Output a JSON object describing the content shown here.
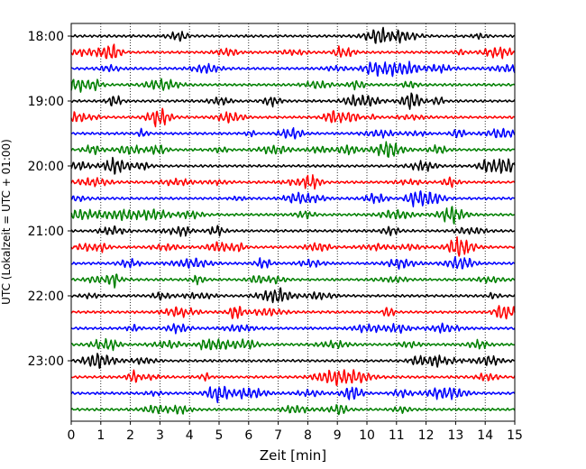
{
  "chart_data": {
    "type": "line",
    "title": "",
    "xlabel": "Zeit  [min]",
    "ylabel": "UTC (Lokalzeit = UTC + 01:00)",
    "xlim": [
      0,
      15
    ],
    "x_ticks": [
      "0",
      "1",
      "2",
      "3",
      "4",
      "5",
      "6",
      "7",
      "8",
      "9",
      "10",
      "11",
      "12",
      "13",
      "14",
      "15"
    ],
    "y_ticks": [
      "18:00",
      "19:00",
      "20:00",
      "21:00",
      "22:00",
      "23:00"
    ],
    "grid": "vertical-dotted",
    "legend": "none",
    "trace_interval_min": 15,
    "trace_count": 24,
    "trace_start": "18:00",
    "trace_colors": [
      "#000000",
      "#ff0000",
      "#0000ff",
      "#008000"
    ]
  }
}
